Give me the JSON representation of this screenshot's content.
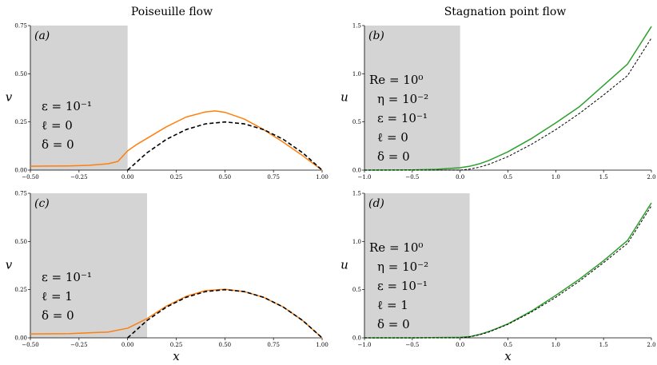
{
  "figure": {
    "col_titles": [
      "Poiseuille flow",
      "Stagnation point flow"
    ]
  },
  "chart_data": [
    {
      "type": "line",
      "panel_label": "(a)",
      "xlabel": "",
      "ylabel": "v",
      "xlim": [
        -0.5,
        1.0
      ],
      "ylim": [
        0,
        0.75
      ],
      "x_ticks": [
        "−0.50",
        "−0.25",
        "0.00",
        "0.25",
        "0.50",
        "0.75",
        "1.00"
      ],
      "y_ticks": [
        "0.00",
        "0.25",
        "0.50",
        "0.75"
      ],
      "shaded_x": [
        -0.5,
        0.0
      ],
      "annotations": [
        "ε = 10⁻¹",
        "ℓ = 0",
        "δ = 0"
      ],
      "series": [
        {
          "style": "solid",
          "color": "#ff7f0e",
          "x": [
            -0.5,
            -0.4,
            -0.3,
            -0.2,
            -0.1,
            -0.05,
            0.0,
            0.05,
            0.1,
            0.2,
            0.3,
            0.4,
            0.45,
            0.5,
            0.6,
            0.7,
            0.8,
            0.9,
            1.0
          ],
          "y": [
            0.02,
            0.021,
            0.022,
            0.025,
            0.033,
            0.045,
            0.1,
            0.135,
            0.165,
            0.225,
            0.275,
            0.302,
            0.307,
            0.3,
            0.265,
            0.21,
            0.145,
            0.075,
            0.0
          ]
        },
        {
          "style": "dashed",
          "color": "#000000",
          "x": [
            0.0,
            0.1,
            0.2,
            0.3,
            0.4,
            0.5,
            0.6,
            0.7,
            0.8,
            0.9,
            1.0
          ],
          "y": [
            0.0,
            0.09,
            0.16,
            0.21,
            0.24,
            0.25,
            0.24,
            0.21,
            0.16,
            0.09,
            0.0
          ]
        }
      ]
    },
    {
      "type": "line",
      "panel_label": "(b)",
      "xlabel": "",
      "ylabel": "u",
      "xlim": [
        -1.0,
        2.0
      ],
      "ylim": [
        0,
        1.5
      ],
      "x_ticks": [
        "−1.0",
        "−0.5",
        "0.0",
        "0.5",
        "1.0",
        "1.5",
        "2.0"
      ],
      "y_ticks": [
        "0.0",
        "0.5",
        "1.0",
        "1.5"
      ],
      "shaded_x": [
        -1.0,
        0.0
      ],
      "annotations": [
        "Re = 10⁰",
        "η = 10⁻²",
        "ε = 10⁻¹",
        "ℓ = 0",
        "δ = 0"
      ],
      "series": [
        {
          "style": "solid",
          "color": "#2ca02c",
          "x": [
            -1.0,
            -0.5,
            -0.25,
            0.0,
            0.1,
            0.2,
            0.3,
            0.4,
            0.5,
            0.75,
            1.0,
            1.25,
            1.5,
            1.75,
            2.0
          ],
          "y": [
            0.0,
            0.002,
            0.008,
            0.025,
            0.04,
            0.065,
            0.1,
            0.145,
            0.19,
            0.33,
            0.49,
            0.66,
            0.88,
            1.1,
            1.49
          ]
        },
        {
          "style": "dashed",
          "color": "#000000",
          "x": [
            -1.0,
            0.0,
            0.1,
            0.2,
            0.3,
            0.4,
            0.5,
            0.75,
            1.0,
            1.25,
            1.5,
            1.75,
            2.0
          ],
          "y": [
            0.0,
            0.0,
            0.01,
            0.03,
            0.06,
            0.1,
            0.14,
            0.27,
            0.42,
            0.59,
            0.78,
            0.98,
            1.37
          ]
        }
      ]
    },
    {
      "type": "line",
      "panel_label": "(c)",
      "xlabel": "x",
      "ylabel": "v",
      "xlim": [
        -0.5,
        1.0
      ],
      "ylim": [
        0,
        0.75
      ],
      "x_ticks": [
        "−0.50",
        "−0.25",
        "0.00",
        "0.25",
        "0.50",
        "0.75",
        "1.00"
      ],
      "y_ticks": [
        "0.00",
        "0.25",
        "0.50",
        "0.75"
      ],
      "shaded_x": [
        -0.5,
        0.1
      ],
      "annotations": [
        "ε = 10⁻¹",
        "ℓ = 1",
        "δ = 0"
      ],
      "series": [
        {
          "style": "solid",
          "color": "#ff7f0e",
          "x": [
            -0.5,
            -0.3,
            -0.1,
            0.0,
            0.05,
            0.1,
            0.2,
            0.3,
            0.4,
            0.5,
            0.6,
            0.7,
            0.8,
            0.9,
            1.0
          ],
          "y": [
            0.02,
            0.022,
            0.03,
            0.05,
            0.075,
            0.1,
            0.165,
            0.215,
            0.245,
            0.252,
            0.24,
            0.21,
            0.16,
            0.09,
            0.0
          ]
        },
        {
          "style": "dashed",
          "color": "#000000",
          "x": [
            0.0,
            0.1,
            0.2,
            0.3,
            0.4,
            0.5,
            0.6,
            0.7,
            0.8,
            0.9,
            1.0
          ],
          "y": [
            0.0,
            0.09,
            0.16,
            0.21,
            0.24,
            0.25,
            0.24,
            0.21,
            0.16,
            0.09,
            0.0
          ]
        }
      ]
    },
    {
      "type": "line",
      "panel_label": "(d)",
      "xlabel": "x",
      "ylabel": "u",
      "xlim": [
        -1.0,
        2.0
      ],
      "ylim": [
        0,
        1.5
      ],
      "x_ticks": [
        "−1.0",
        "−0.5",
        "0.0",
        "0.5",
        "1.0",
        "1.5",
        "2.0"
      ],
      "y_ticks": [
        "0.0",
        "0.5",
        "1.0",
        "1.5"
      ],
      "shaded_x": [
        -1.0,
        0.1
      ],
      "annotations": [
        "Re = 10⁰",
        "η = 10⁻²",
        "ε = 10⁻¹",
        "ℓ = 1",
        "δ = 0"
      ],
      "series": [
        {
          "style": "solid",
          "color": "#2ca02c",
          "x": [
            -1.0,
            -0.5,
            0.0,
            0.1,
            0.2,
            0.3,
            0.4,
            0.5,
            0.75,
            1.0,
            1.25,
            1.5,
            1.75,
            2.0
          ],
          "y": [
            0.0,
            0.0,
            0.005,
            0.012,
            0.035,
            0.066,
            0.104,
            0.145,
            0.28,
            0.44,
            0.61,
            0.8,
            1.01,
            1.4
          ]
        },
        {
          "style": "dashed",
          "color": "#000000",
          "x": [
            -1.0,
            0.0,
            0.1,
            0.2,
            0.3,
            0.4,
            0.5,
            0.75,
            1.0,
            1.25,
            1.5,
            1.75,
            2.0
          ],
          "y": [
            0.0,
            0.0,
            0.01,
            0.03,
            0.06,
            0.1,
            0.14,
            0.27,
            0.42,
            0.59,
            0.78,
            0.98,
            1.37
          ]
        }
      ]
    }
  ]
}
